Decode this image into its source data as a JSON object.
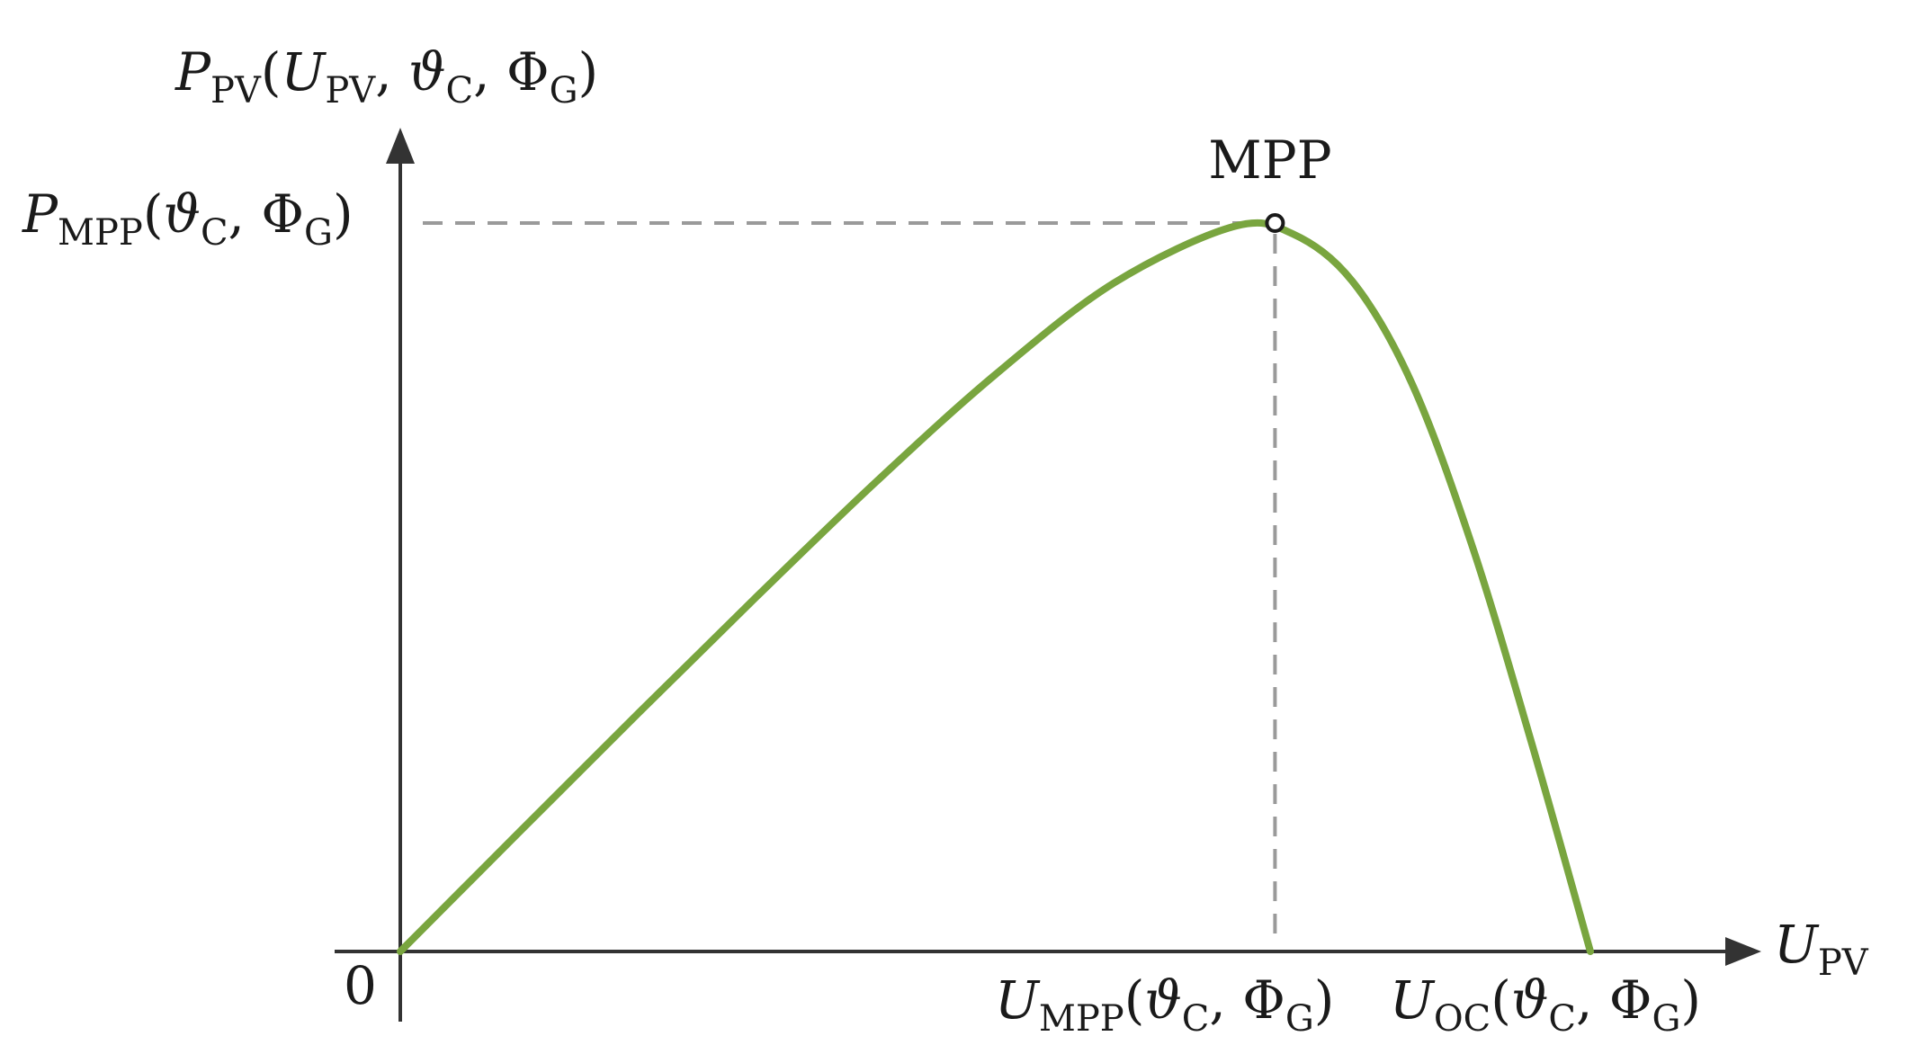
{
  "figure": {
    "colors": {
      "curve": "#79a53f",
      "axis": "#333333",
      "guide": "#9a9a9a",
      "marker_fill": "#ffffff",
      "marker_stroke": "#1a1a1a"
    }
  },
  "y_axis": {
    "label_main": "P",
    "label_sub": "PV",
    "label_args_open": "(",
    "label_arg1_main": "U",
    "label_arg1_sub": "PV",
    "label_sep1": ", ",
    "label_arg2_main": "ϑ",
    "label_arg2_sub": "C",
    "label_sep2": ", ",
    "label_arg3_main": "Φ",
    "label_arg3_sub": "G",
    "label_args_close": ")"
  },
  "x_axis": {
    "label_main": "U",
    "label_sub": "PV"
  },
  "origin": {
    "label": "0"
  },
  "mpp_point": {
    "label": "MPP",
    "p_label_main": "P",
    "p_label_sub": "MPP",
    "p_label_open": "(",
    "p_label_theta": "ϑ",
    "p_label_theta_sub": "C",
    "p_label_sep": ", ",
    "p_label_phi": "Φ",
    "p_label_phi_sub": "G",
    "p_label_close": ")",
    "u_label_main": "U",
    "u_label_sub": "MPP",
    "u_label_open": "(",
    "u_label_theta": "ϑ",
    "u_label_theta_sub": "C",
    "u_label_sep": ", ",
    "u_label_phi": "Φ",
    "u_label_phi_sub": "G",
    "u_label_close": ")"
  },
  "oc_point": {
    "label_main": "U",
    "label_sub": "OC",
    "label_open": "(",
    "label_theta": "ϑ",
    "label_theta_sub": "C",
    "label_sep": ", ",
    "label_phi": "Φ",
    "label_phi_sub": "G",
    "label_close": ")"
  },
  "chart_data": {
    "type": "line",
    "x_values_normalized": [
      0.0,
      0.1,
      0.2,
      0.3,
      0.4,
      0.5,
      0.6,
      0.7,
      0.75,
      0.8,
      0.85,
      0.9,
      0.95,
      1.0
    ],
    "y_values_normalized": [
      0.0,
      0.164,
      0.327,
      0.488,
      0.645,
      0.792,
      0.918,
      0.995,
      0.985,
      0.92,
      0.78,
      0.56,
      0.29,
      0.0
    ],
    "mpp_x_normalized": 0.735,
    "mpp_y_normalized": 1.0,
    "oc_x_normalized": 1.0,
    "grid": false,
    "series": [
      {
        "values_ref": "y_values_normalized"
      }
    ]
  }
}
